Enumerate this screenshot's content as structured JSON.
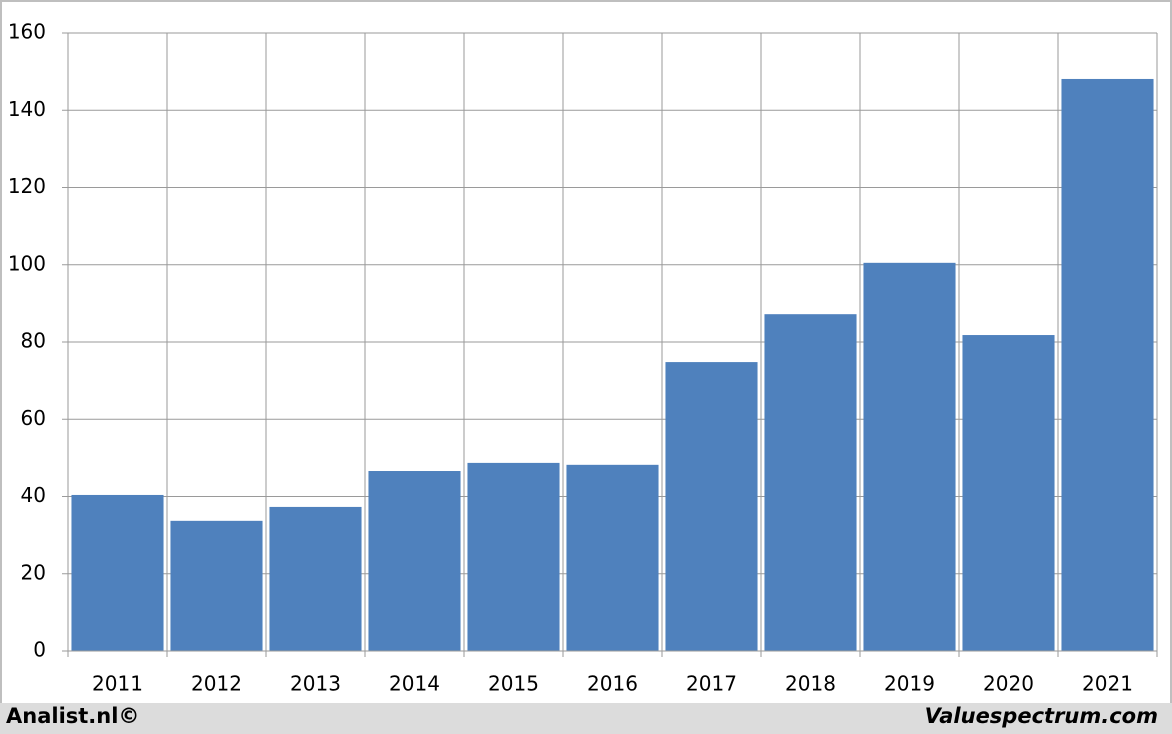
{
  "chart_data": {
    "type": "bar",
    "categories": [
      "2011",
      "2012",
      "2013",
      "2014",
      "2015",
      "2016",
      "2017",
      "2018",
      "2019",
      "2020",
      "2021"
    ],
    "values": [
      40.4,
      33.7,
      37.3,
      46.6,
      48.7,
      48.2,
      74.8,
      87.2,
      100.5,
      81.8,
      148.1
    ],
    "color": "#4f81bd",
    "ylim": [
      0,
      160
    ],
    "yticks": [
      0,
      20,
      40,
      60,
      80,
      100,
      120,
      140,
      160
    ],
    "grid": true,
    "footer_left": "Analist.nl©",
    "footer_right": "Valuespectrum.com"
  }
}
